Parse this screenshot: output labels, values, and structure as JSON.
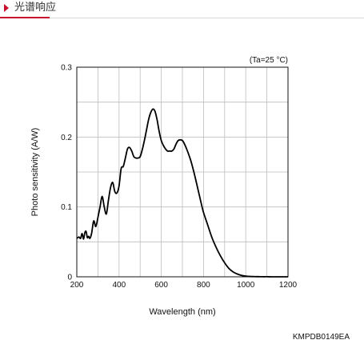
{
  "header": {
    "title": "光谱响应",
    "accent_color": "#c8102e"
  },
  "chart_data": {
    "type": "line",
    "title": "",
    "condition_note": "(Ta=25 °C)",
    "xlabel": "Wavelength (nm)",
    "ylabel": "Photo sensitivity (A/W)",
    "xlim": [
      200,
      1200
    ],
    "ylim": [
      0,
      0.3
    ],
    "xticks": [
      200,
      400,
      600,
      800,
      1000,
      1200
    ],
    "yticks": [
      0,
      0.1,
      0.2,
      0.3
    ],
    "ytick_labels": [
      "0",
      "0.1",
      "0.2",
      "0.3"
    ],
    "grid": true,
    "series": [
      {
        "name": "",
        "x": [
          200,
          210,
          218,
          225,
          232,
          238,
          244,
          250,
          256,
          262,
          270,
          280,
          290,
          300,
          310,
          320,
          330,
          340,
          350,
          360,
          370,
          380,
          390,
          400,
          410,
          420,
          430,
          440,
          450,
          460,
          470,
          480,
          490,
          500,
          510,
          520,
          530,
          540,
          550,
          560,
          570,
          580,
          590,
          600,
          610,
          620,
          630,
          640,
          650,
          660,
          670,
          680,
          690,
          700,
          710,
          720,
          730,
          740,
          750,
          760,
          770,
          780,
          790,
          800,
          820,
          840,
          860,
          880,
          900,
          920,
          940,
          960,
          980,
          1000,
          1020,
          1040,
          1060,
          1080,
          1100,
          1120,
          1140,
          1160,
          1180,
          1200
        ],
        "y": [
          0.055,
          0.057,
          0.055,
          0.062,
          0.054,
          0.063,
          0.065,
          0.056,
          0.058,
          0.055,
          0.062,
          0.08,
          0.072,
          0.085,
          0.1,
          0.115,
          0.1,
          0.09,
          0.11,
          0.128,
          0.135,
          0.122,
          0.12,
          0.13,
          0.155,
          0.158,
          0.17,
          0.183,
          0.185,
          0.18,
          0.172,
          0.17,
          0.17,
          0.172,
          0.182,
          0.195,
          0.21,
          0.225,
          0.235,
          0.24,
          0.237,
          0.225,
          0.208,
          0.195,
          0.188,
          0.183,
          0.18,
          0.18,
          0.18,
          0.183,
          0.19,
          0.195,
          0.196,
          0.195,
          0.19,
          0.183,
          0.175,
          0.166,
          0.155,
          0.143,
          0.13,
          0.117,
          0.104,
          0.092,
          0.074,
          0.056,
          0.042,
          0.03,
          0.02,
          0.012,
          0.007,
          0.004,
          0.002,
          0.001,
          0.0005,
          0.0003,
          0.0002,
          0.0001,
          0.0001,
          0.0,
          0.0,
          0.0,
          0.0,
          0.0
        ]
      }
    ]
  },
  "footer": {
    "code": "KMPDB0149EA"
  }
}
